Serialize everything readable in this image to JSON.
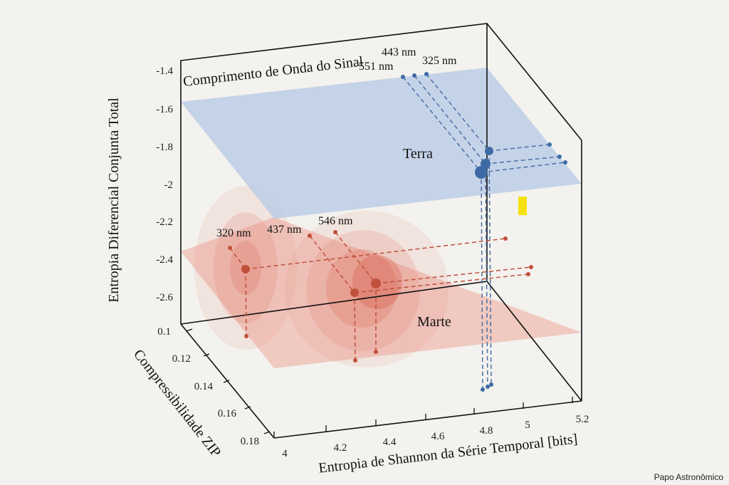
{
  "credit": "Papo Astronômico",
  "colors": {
    "terra": "#4a6fa5",
    "marte": "#c0503a",
    "terra_plane": "#b9cbe6",
    "marte_plane": "#eeb8ad",
    "highlight": "#f4e10f"
  },
  "chart_data": {
    "type": "scatter",
    "title": "",
    "xlabel": "Entropia de Shannon da Série Temporal [bits]",
    "ylabel": "Compressibilidade ZIP",
    "zlabel": "Entropia Diferencial Conjunta Total",
    "legend_title": "Comprimento de Onda do Sinal",
    "xlim": [
      4,
      5.2
    ],
    "ylim": [
      0.1,
      0.18
    ],
    "zlim": [
      -2.6,
      -1.4
    ],
    "x_ticks": [
      "4",
      "4.2",
      "4.4",
      "4.6",
      "4.8",
      "5",
      "5.2"
    ],
    "y_ticks": [
      "0.1",
      "0.12",
      "0.14",
      "0.16",
      "0.18"
    ],
    "z_ticks": [
      "-1.4",
      "-1.6",
      "-1.8",
      "-2",
      "-2.2",
      "-2.4",
      "-2.6"
    ],
    "planes": [
      {
        "name": "Terra",
        "z": -1.6
      },
      {
        "name": "Marte",
        "z": -2.4
      }
    ],
    "series": [
      {
        "name": "Terra",
        "points": [
          {
            "label": "443 nm",
            "x": 4.96,
            "y": 0.09,
            "z": -1.9
          },
          {
            "label": "551 nm",
            "x": 4.97,
            "y": 0.09,
            "z": -1.95
          },
          {
            "label": "325 nm",
            "x": 4.98,
            "y": 0.09,
            "z": -2.0
          }
        ]
      },
      {
        "name": "Marte",
        "points": [
          {
            "label": "320 nm",
            "x": 4.05,
            "y": 0.13,
            "z": -2.45
          },
          {
            "label": "437 nm",
            "x": 4.45,
            "y": 0.15,
            "z": -2.55
          },
          {
            "label": "546 nm",
            "x": 4.5,
            "y": 0.145,
            "z": -2.5
          }
        ]
      }
    ]
  }
}
